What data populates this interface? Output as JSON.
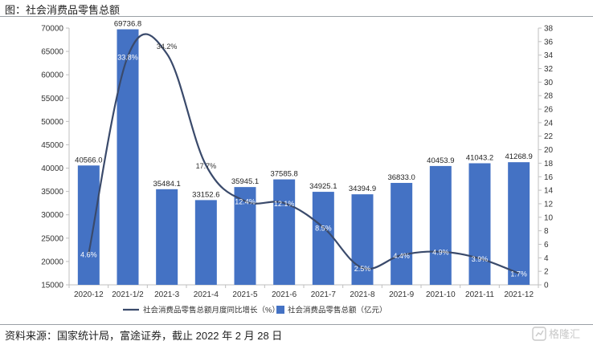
{
  "page": {
    "title": "图：社会消费品零售总额",
    "source": "资料来源：国家统计局，富途证券，截止 2022 年 2 月 28 日",
    "watermark": "格隆汇"
  },
  "chart_data": {
    "type": "bar",
    "title": "",
    "xlabel": "",
    "ylabel": "",
    "categories": [
      "2020-12",
      "2021-1/2",
      "2021-3",
      "2021-4",
      "2021-5",
      "2021-6",
      "2021-7",
      "2021-8",
      "2021-9",
      "2021-10",
      "2021-11",
      "2021-12"
    ],
    "series": [
      {
        "name": "社会消费品零售总额（亿元）",
        "type": "bar",
        "axis": "left",
        "values": [
          40566.0,
          69736.8,
          35484.1,
          33152.6,
          35945.1,
          37585.8,
          34925.1,
          34394.9,
          36833.0,
          40453.9,
          41043.2,
          41268.9
        ],
        "labels": [
          "40566.0",
          "69736.8",
          "35484.1",
          "33152.6",
          "35945.1",
          "37585.8",
          "34925.1",
          "34394.9",
          "36833.0",
          "40453.9",
          "41043.2",
          "41268.9"
        ]
      },
      {
        "name": "社会消费品零售总额月度同比增长（%）",
        "type": "line",
        "axis": "right",
        "values": [
          4.6,
          33.8,
          34.2,
          17.7,
          12.4,
          12.1,
          8.5,
          2.5,
          4.4,
          4.9,
          3.9,
          1.7
        ],
        "labels": [
          "4.6%",
          "33.8%",
          "34.2%",
          "17.7%",
          "12.4%",
          "12.1%",
          "8.5%",
          "2.5%",
          "4.4%",
          "4.9%",
          "3.9%",
          "1.7%"
        ]
      }
    ],
    "ylim": [
      15000,
      70000
    ],
    "yticks": [
      "15000",
      "20000",
      "25000",
      "30000",
      "35000",
      "40000",
      "45000",
      "50000",
      "55000",
      "60000",
      "65000",
      "70000"
    ],
    "y2lim": [
      0,
      38
    ],
    "y2ticks": [
      "0",
      "2",
      "4",
      "6",
      "8",
      "10",
      "12",
      "14",
      "16",
      "18",
      "20",
      "22",
      "24",
      "26",
      "28",
      "30",
      "32",
      "34",
      "36",
      "38"
    ],
    "legend_position": "bottom-center",
    "grid": false,
    "colors": {
      "bar": "#4472c4",
      "line": "#3a4a6b",
      "axis": "#bfbfbf"
    }
  }
}
